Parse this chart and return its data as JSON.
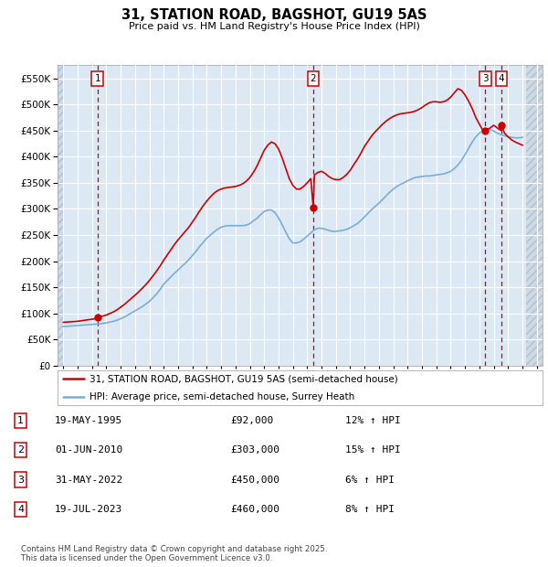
{
  "title": "31, STATION ROAD, BAGSHOT, GU19 5AS",
  "subtitle": "Price paid vs. HM Land Registry's House Price Index (HPI)",
  "ylim": [
    0,
    575000
  ],
  "yticks": [
    0,
    50000,
    100000,
    150000,
    200000,
    250000,
    300000,
    350000,
    400000,
    450000,
    500000,
    550000
  ],
  "xmin": 1992.6,
  "xmax": 2026.4,
  "background_color": "#ffffff",
  "plot_bg_color": "#dce9f5",
  "grid_color": "#ffffff",
  "legend_entries": [
    "31, STATION ROAD, BAGSHOT, GU19 5AS (semi-detached house)",
    "HPI: Average price, semi-detached house, Surrey Heath"
  ],
  "sale_dates": [
    1995.38,
    2010.42,
    2022.42,
    2023.55
  ],
  "sale_prices": [
    92000,
    303000,
    450000,
    460000
  ],
  "sale_labels": [
    "1",
    "2",
    "3",
    "4"
  ],
  "sale_info": [
    {
      "num": "1",
      "date": "19-MAY-1995",
      "price": "£92,000",
      "hpi": "12% ↑ HPI"
    },
    {
      "num": "2",
      "date": "01-JUN-2010",
      "price": "£303,000",
      "hpi": "15% ↑ HPI"
    },
    {
      "num": "3",
      "date": "31-MAY-2022",
      "price": "£450,000",
      "hpi": "6% ↑ HPI"
    },
    {
      "num": "4",
      "date": "19-JUL-2023",
      "price": "£460,000",
      "hpi": "8% ↑ HPI"
    }
  ],
  "red_line_color": "#cc0000",
  "blue_line_color": "#7aadd4",
  "dot_color": "#cc0000",
  "vline_color": "#cc0000",
  "label_box_color": "#ffffff",
  "label_box_edge": "#cc0000",
  "footnote": "Contains HM Land Registry data © Crown copyright and database right 2025.\nThis data is licensed under the Open Government Licence v3.0.",
  "hpi_x": [
    1993.0,
    1993.25,
    1993.5,
    1993.75,
    1994.0,
    1994.25,
    1994.5,
    1994.75,
    1995.0,
    1995.25,
    1995.5,
    1995.75,
    1996.0,
    1996.25,
    1996.5,
    1996.75,
    1997.0,
    1997.25,
    1997.5,
    1997.75,
    1998.0,
    1998.25,
    1998.5,
    1998.75,
    1999.0,
    1999.25,
    1999.5,
    1999.75,
    2000.0,
    2000.25,
    2000.5,
    2000.75,
    2001.0,
    2001.25,
    2001.5,
    2001.75,
    2002.0,
    2002.25,
    2002.5,
    2002.75,
    2003.0,
    2003.25,
    2003.5,
    2003.75,
    2004.0,
    2004.25,
    2004.5,
    2004.75,
    2005.0,
    2005.25,
    2005.5,
    2005.75,
    2006.0,
    2006.25,
    2006.5,
    2006.75,
    2007.0,
    2007.25,
    2007.5,
    2007.75,
    2008.0,
    2008.25,
    2008.5,
    2008.75,
    2009.0,
    2009.25,
    2009.5,
    2009.75,
    2010.0,
    2010.25,
    2010.5,
    2010.75,
    2011.0,
    2011.25,
    2011.5,
    2011.75,
    2012.0,
    2012.25,
    2012.5,
    2012.75,
    2013.0,
    2013.25,
    2013.5,
    2013.75,
    2014.0,
    2014.25,
    2014.5,
    2014.75,
    2015.0,
    2015.25,
    2015.5,
    2015.75,
    2016.0,
    2016.25,
    2016.5,
    2016.75,
    2017.0,
    2017.25,
    2017.5,
    2017.75,
    2018.0,
    2018.25,
    2018.5,
    2018.75,
    2019.0,
    2019.25,
    2019.5,
    2019.75,
    2020.0,
    2020.25,
    2020.5,
    2020.75,
    2021.0,
    2021.25,
    2021.5,
    2021.75,
    2022.0,
    2022.25,
    2022.5,
    2022.75,
    2023.0,
    2023.25,
    2023.5,
    2023.75,
    2024.0,
    2024.25,
    2024.5,
    2024.75,
    2025.0
  ],
  "hpi_y": [
    75000,
    75500,
    76000,
    76500,
    77000,
    77500,
    78000,
    78500,
    79000,
    79500,
    80000,
    81000,
    82000,
    83500,
    85000,
    87000,
    90000,
    93000,
    97000,
    101000,
    105000,
    109000,
    113000,
    118000,
    123000,
    130000,
    137000,
    146000,
    156000,
    163000,
    170000,
    177000,
    183000,
    190000,
    196000,
    203000,
    211000,
    219000,
    228000,
    236000,
    244000,
    250000,
    256000,
    261000,
    265000,
    267000,
    268000,
    268000,
    268000,
    268000,
    268000,
    269000,
    272000,
    277000,
    282000,
    289000,
    295000,
    298000,
    298000,
    293000,
    283000,
    270000,
    256000,
    243000,
    235000,
    235000,
    237000,
    242000,
    248000,
    254000,
    260000,
    263000,
    263000,
    261000,
    259000,
    257000,
    257000,
    258000,
    259000,
    261000,
    264000,
    268000,
    272000,
    278000,
    285000,
    292000,
    299000,
    305000,
    311000,
    318000,
    325000,
    332000,
    338000,
    343000,
    347000,
    350000,
    354000,
    357000,
    360000,
    361000,
    362000,
    363000,
    363000,
    364000,
    365000,
    366000,
    367000,
    369000,
    372000,
    377000,
    384000,
    393000,
    404000,
    416000,
    428000,
    438000,
    445000,
    450000,
    453000,
    452000,
    449000,
    445000,
    442000,
    440000,
    438000,
    437000,
    436000,
    436000,
    437000
  ],
  "red_x": [
    1993.0,
    1993.25,
    1993.5,
    1993.75,
    1994.0,
    1994.25,
    1994.5,
    1994.75,
    1995.0,
    1995.25,
    1995.38,
    1995.5,
    1995.75,
    1996.0,
    1996.25,
    1996.5,
    1996.75,
    1997.0,
    1997.25,
    1997.5,
    1997.75,
    1998.0,
    1998.25,
    1998.5,
    1998.75,
    1999.0,
    1999.25,
    1999.5,
    1999.75,
    2000.0,
    2000.25,
    2000.5,
    2000.75,
    2001.0,
    2001.25,
    2001.5,
    2001.75,
    2002.0,
    2002.25,
    2002.5,
    2002.75,
    2003.0,
    2003.25,
    2003.5,
    2003.75,
    2004.0,
    2004.25,
    2004.5,
    2004.75,
    2005.0,
    2005.25,
    2005.5,
    2005.75,
    2006.0,
    2006.25,
    2006.5,
    2006.75,
    2007.0,
    2007.25,
    2007.5,
    2007.75,
    2008.0,
    2008.25,
    2008.5,
    2008.75,
    2009.0,
    2009.25,
    2009.5,
    2009.75,
    2010.0,
    2010.25,
    2010.42,
    2010.5,
    2010.75,
    2011.0,
    2011.25,
    2011.5,
    2011.75,
    2012.0,
    2012.25,
    2012.5,
    2012.75,
    2013.0,
    2013.25,
    2013.5,
    2013.75,
    2014.0,
    2014.25,
    2014.5,
    2014.75,
    2015.0,
    2015.25,
    2015.5,
    2015.75,
    2016.0,
    2016.25,
    2016.5,
    2016.75,
    2017.0,
    2017.25,
    2017.5,
    2017.75,
    2018.0,
    2018.25,
    2018.5,
    2018.75,
    2019.0,
    2019.25,
    2019.5,
    2019.75,
    2020.0,
    2020.25,
    2020.5,
    2020.75,
    2021.0,
    2021.25,
    2021.5,
    2021.75,
    2022.0,
    2022.25,
    2022.42,
    2022.5,
    2022.75,
    2023.0,
    2023.25,
    2023.5,
    2023.55,
    2023.75,
    2024.0,
    2024.25,
    2024.5,
    2024.75,
    2025.0
  ],
  "red_y": [
    83000,
    83500,
    84000,
    84500,
    85000,
    86000,
    87000,
    88000,
    89000,
    90000,
    92000,
    93000,
    95000,
    97000,
    100000,
    103000,
    107000,
    112000,
    117000,
    123000,
    129000,
    135000,
    141000,
    148000,
    155000,
    163000,
    172000,
    181000,
    191000,
    202000,
    212000,
    222000,
    232000,
    241000,
    249000,
    257000,
    265000,
    275000,
    285000,
    296000,
    306000,
    315000,
    323000,
    330000,
    335000,
    338000,
    340000,
    341000,
    342000,
    343000,
    345000,
    348000,
    353000,
    360000,
    370000,
    382000,
    397000,
    412000,
    422000,
    428000,
    425000,
    415000,
    398000,
    378000,
    358000,
    345000,
    338000,
    338000,
    343000,
    350000,
    358000,
    303000,
    365000,
    370000,
    372000,
    368000,
    362000,
    358000,
    356000,
    356000,
    360000,
    366000,
    374000,
    385000,
    395000,
    407000,
    420000,
    430000,
    440000,
    448000,
    455000,
    462000,
    468000,
    473000,
    477000,
    480000,
    482000,
    483000,
    484000,
    485000,
    487000,
    490000,
    494000,
    499000,
    503000,
    505000,
    505000,
    504000,
    505000,
    508000,
    514000,
    522000,
    530000,
    527000,
    518000,
    506000,
    492000,
    475000,
    462000,
    450000,
    450000,
    451000,
    455000,
    460000,
    455000,
    450000,
    460000,
    445000,
    438000,
    432000,
    428000,
    425000,
    422000
  ]
}
